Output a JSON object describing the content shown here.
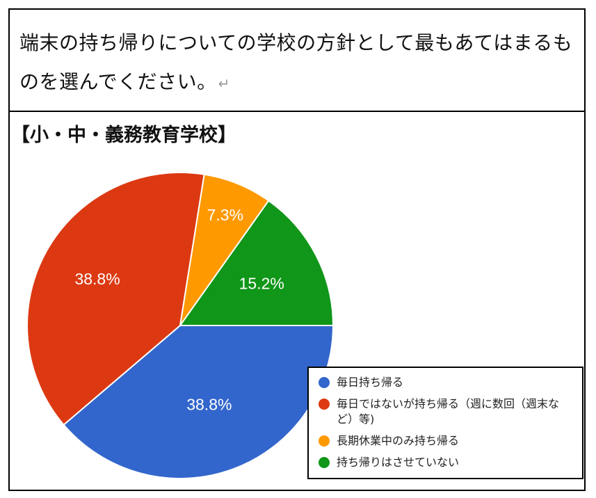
{
  "question": {
    "text": "端末の持ち帰りについての学校の方針として最もあてはまるものを選んでください。",
    "return_mark": "↵"
  },
  "section_title": "【小・中・義務教育学校】",
  "colors": {
    "blue": "#3366cc",
    "red": "#dc3912",
    "orange": "#ff9900",
    "green": "#109618"
  },
  "chart_data": {
    "type": "pie",
    "start_angle_deg": 0,
    "direction": "clockwise",
    "slices": [
      {
        "label": "毎日持ち帰る",
        "value": 38.8,
        "display": "38.8%",
        "color": "#3366cc"
      },
      {
        "label": "毎日ではないが持ち帰る（週に数回（週末など）等)",
        "value": 38.8,
        "display": "38.8%",
        "color": "#dc3912"
      },
      {
        "label": "長期休業中のみ持ち帰る",
        "value": 7.3,
        "display": "7.3%",
        "color": "#ff9900"
      },
      {
        "label": "持ち帰りはさせていない",
        "value": 15.2,
        "display": "15.2%",
        "color": "#109618"
      }
    ],
    "legend_placement": "bottom-right"
  }
}
